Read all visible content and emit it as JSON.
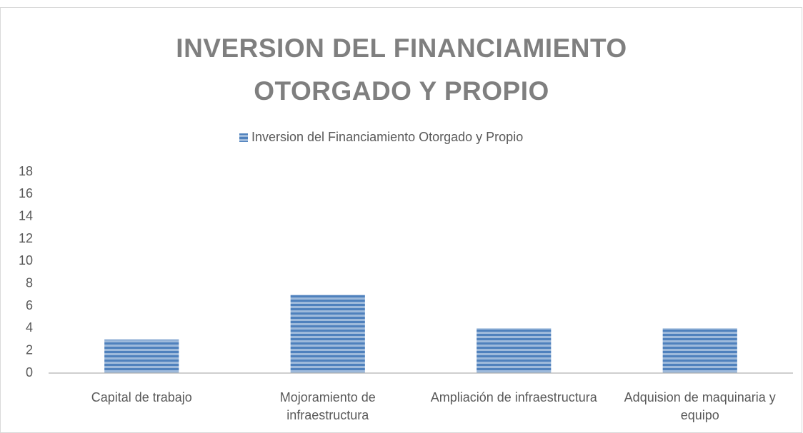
{
  "chart_data": {
    "type": "bar",
    "title": "INVERSION DEL FINANCIAMIENTO OTORGADO Y PROPIO",
    "categories": [
      "Capital de trabajo",
      "Mojoramiento de infraestructura",
      "Ampliación de infraestructura",
      "Adquision de maquinaria y equipo"
    ],
    "series": [
      {
        "name": "Inversion del Financiamiento Otorgado y Propio",
        "color": "#4f81bd",
        "values": [
          3,
          7,
          4,
          4
        ]
      }
    ],
    "ylim": [
      0,
      18
    ],
    "yticks": [
      0,
      2,
      4,
      6,
      8,
      10,
      12,
      14,
      16,
      18
    ],
    "grid": false,
    "legend": "top"
  }
}
